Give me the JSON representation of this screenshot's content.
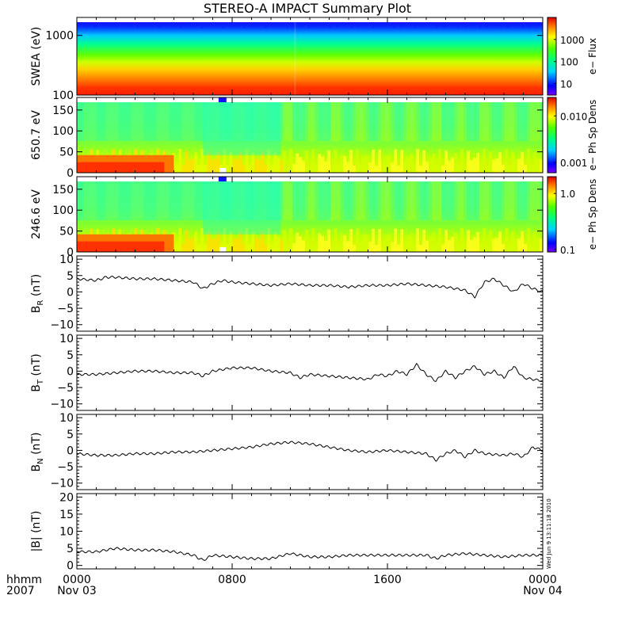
{
  "title": "STEREO-A IMPACT Summary Plot",
  "stamp": "Wed Jun  9 13:11:18 2010",
  "x_axis": {
    "row1_label": "hhmm",
    "row2_label": "2007",
    "range_hours": [
      0,
      24
    ],
    "ticks": [
      {
        "hour": 0,
        "label": "0000",
        "sub": "Nov 03"
      },
      {
        "hour": 8,
        "label": "0800",
        "sub": ""
      },
      {
        "hour": 16,
        "label": "1600",
        "sub": ""
      },
      {
        "hour": 24,
        "label": "0000",
        "sub": "Nov 04"
      }
    ]
  },
  "chart_data": [
    {
      "type": "heatmap",
      "ylabel": "SWEA (eV)",
      "yscale": "log",
      "ylim": [
        100,
        2000
      ],
      "yticks": [
        {
          "v": 100,
          "label": "100"
        },
        {
          "v": 1000,
          "label": "1000"
        }
      ],
      "colorbar": {
        "label": "e− Flux",
        "scale": "log",
        "range": [
          3,
          10000
        ],
        "ticks": [
          {
            "v": 10,
            "label": "10"
          },
          {
            "v": 100,
            "label": "100"
          },
          {
            "v": 1000,
            "label": "1000"
          }
        ]
      },
      "description_of_values": "flux decreasing with energy: ~5000 near 100 eV to ~5 near 2000 eV, roughly uniform in time, slight change near 1100"
    },
    {
      "type": "heatmap",
      "ylabel": "650.7 eV",
      "ylim": [
        0,
        180
      ],
      "yticks": [
        {
          "v": 0,
          "label": "0"
        },
        {
          "v": 50,
          "label": "50"
        },
        {
          "v": 100,
          "label": "100"
        },
        {
          "v": 150,
          "label": "150"
        }
      ],
      "colorbar": {
        "label": "e− Ph Sp Dens",
        "scale": "log",
        "range": [
          0.0006,
          0.025
        ],
        "ticks": [
          {
            "v": 0.001,
            "label": "0.001"
          },
          {
            "v": 0.01,
            "label": "0.010"
          }
        ]
      },
      "enhanced_low_pitch_until_hour": 5
    },
    {
      "type": "heatmap",
      "ylabel": "246.6 eV",
      "ylim": [
        0,
        180
      ],
      "yticks": [
        {
          "v": 0,
          "label": "0"
        },
        {
          "v": 50,
          "label": "50"
        },
        {
          "v": 100,
          "label": "100"
        },
        {
          "v": 150,
          "label": "150"
        }
      ],
      "colorbar": {
        "label": "e− Ph Sp Dens",
        "scale": "log",
        "range": [
          0.09,
          2.0
        ],
        "ticks": [
          {
            "v": 0.1,
            "label": "0.1"
          },
          {
            "v": 1.0,
            "label": "1.0"
          }
        ]
      },
      "enhanced_low_pitch_until_hour": 5
    },
    {
      "type": "line",
      "ylabel": "BR (nT)",
      "ylabel_main": "B",
      "ylabel_sub": "R",
      "ylabel_unit": "(nT)",
      "ylim": [
        -12,
        11
      ],
      "yticks": [
        {
          "v": -10,
          "label": "−10"
        },
        {
          "v": -5,
          "label": "−5"
        },
        {
          "v": 0,
          "label": "0"
        },
        {
          "v": 5,
          "label": "5"
        },
        {
          "v": 10,
          "label": "10"
        }
      ],
      "x": [
        0,
        1,
        1.5,
        2,
        3,
        4,
        5,
        6,
        6.5,
        7,
        7.5,
        8,
        9,
        10,
        11,
        12,
        13,
        14,
        15,
        16,
        17,
        18,
        19,
        20,
        20.5,
        21,
        21.5,
        22,
        22.5,
        23,
        23.5,
        24
      ],
      "y": [
        4,
        3.5,
        4.5,
        4.5,
        4,
        4,
        3.5,
        3,
        1,
        2.5,
        3.5,
        3,
        2.5,
        2,
        2.5,
        2,
        2,
        1.5,
        2,
        2,
        2.5,
        2,
        1.5,
        0.5,
        -1.5,
        3,
        4,
        2,
        0,
        2.5,
        1,
        0
      ]
    },
    {
      "type": "line",
      "ylabel": "BT (nT)",
      "ylabel_main": "B",
      "ylabel_sub": "T",
      "ylabel_unit": "(nT)",
      "ylim": [
        -12,
        11
      ],
      "yticks": [
        {
          "v": -10,
          "label": "−10"
        },
        {
          "v": -5,
          "label": "−5"
        },
        {
          "v": 0,
          "label": "0"
        },
        {
          "v": 5,
          "label": "5"
        },
        {
          "v": 10,
          "label": "10"
        }
      ],
      "x": [
        0,
        1,
        2,
        3,
        4,
        5,
        6,
        6.5,
        7,
        8,
        9,
        10,
        11,
        11.5,
        12,
        13,
        14,
        15,
        15.5,
        16,
        16.5,
        17,
        17.5,
        18,
        18.5,
        19,
        19.5,
        20,
        20.5,
        21,
        21.5,
        22,
        22.5,
        23,
        24
      ],
      "y": [
        -1,
        -1,
        -0.5,
        0,
        0,
        -0.5,
        -0.5,
        -1.5,
        0,
        1,
        1,
        0,
        -0.5,
        -2,
        -1,
        -1.5,
        -2,
        -2.5,
        -1,
        -1.5,
        0,
        -1,
        2,
        -1,
        -3,
        0,
        -2,
        0,
        1.5,
        -1,
        0,
        -2,
        1.5,
        -2,
        -3
      ]
    },
    {
      "type": "line",
      "ylabel": "BN (nT)",
      "ylabel_main": "B",
      "ylabel_sub": "N",
      "ylabel_unit": "(nT)",
      "ylim": [
        -12,
        11
      ],
      "yticks": [
        {
          "v": -10,
          "label": "−10"
        },
        {
          "v": -5,
          "label": "−5"
        },
        {
          "v": 0,
          "label": "0"
        },
        {
          "v": 5,
          "label": "5"
        },
        {
          "v": 10,
          "label": "10"
        }
      ],
      "x": [
        0,
        1,
        2,
        3,
        4,
        5,
        6,
        7,
        8,
        9,
        10,
        11,
        12,
        13,
        14,
        15,
        16,
        17,
        18,
        18.5,
        19,
        19.5,
        20,
        20.5,
        21,
        22,
        22.5,
        23,
        23.5,
        24
      ],
      "y": [
        -1,
        -1.5,
        -1.5,
        -1,
        -1,
        -0.5,
        -0.5,
        0,
        0.5,
        1,
        2,
        2.5,
        2,
        1,
        0,
        -0.5,
        0,
        -0.5,
        -1,
        -3,
        -1,
        0,
        -2,
        0,
        -1,
        -1.5,
        -1,
        -2,
        1,
        0
      ]
    },
    {
      "type": "line",
      "ylabel": "|B| (nT)",
      "ylabel_text": "|B| (nT)",
      "ylim": [
        -1,
        21
      ],
      "yticks": [
        {
          "v": 0,
          "label": "0"
        },
        {
          "v": 5,
          "label": "5"
        },
        {
          "v": 10,
          "label": "10"
        },
        {
          "v": 15,
          "label": "15"
        },
        {
          "v": 20,
          "label": "20"
        }
      ],
      "x": [
        0,
        1,
        2,
        3,
        4,
        5,
        6,
        6.5,
        7,
        8,
        9,
        10,
        11,
        12,
        13,
        14,
        15,
        16,
        17,
        18,
        18.5,
        19,
        20,
        21,
        22,
        23,
        24
      ],
      "y": [
        4,
        4,
        5,
        4.5,
        4.5,
        4,
        3,
        1.5,
        3,
        2.5,
        2,
        2,
        3.5,
        2.5,
        2.5,
        3,
        3,
        3,
        3,
        3,
        2,
        3,
        3.5,
        3,
        2.5,
        3,
        3
      ]
    }
  ]
}
